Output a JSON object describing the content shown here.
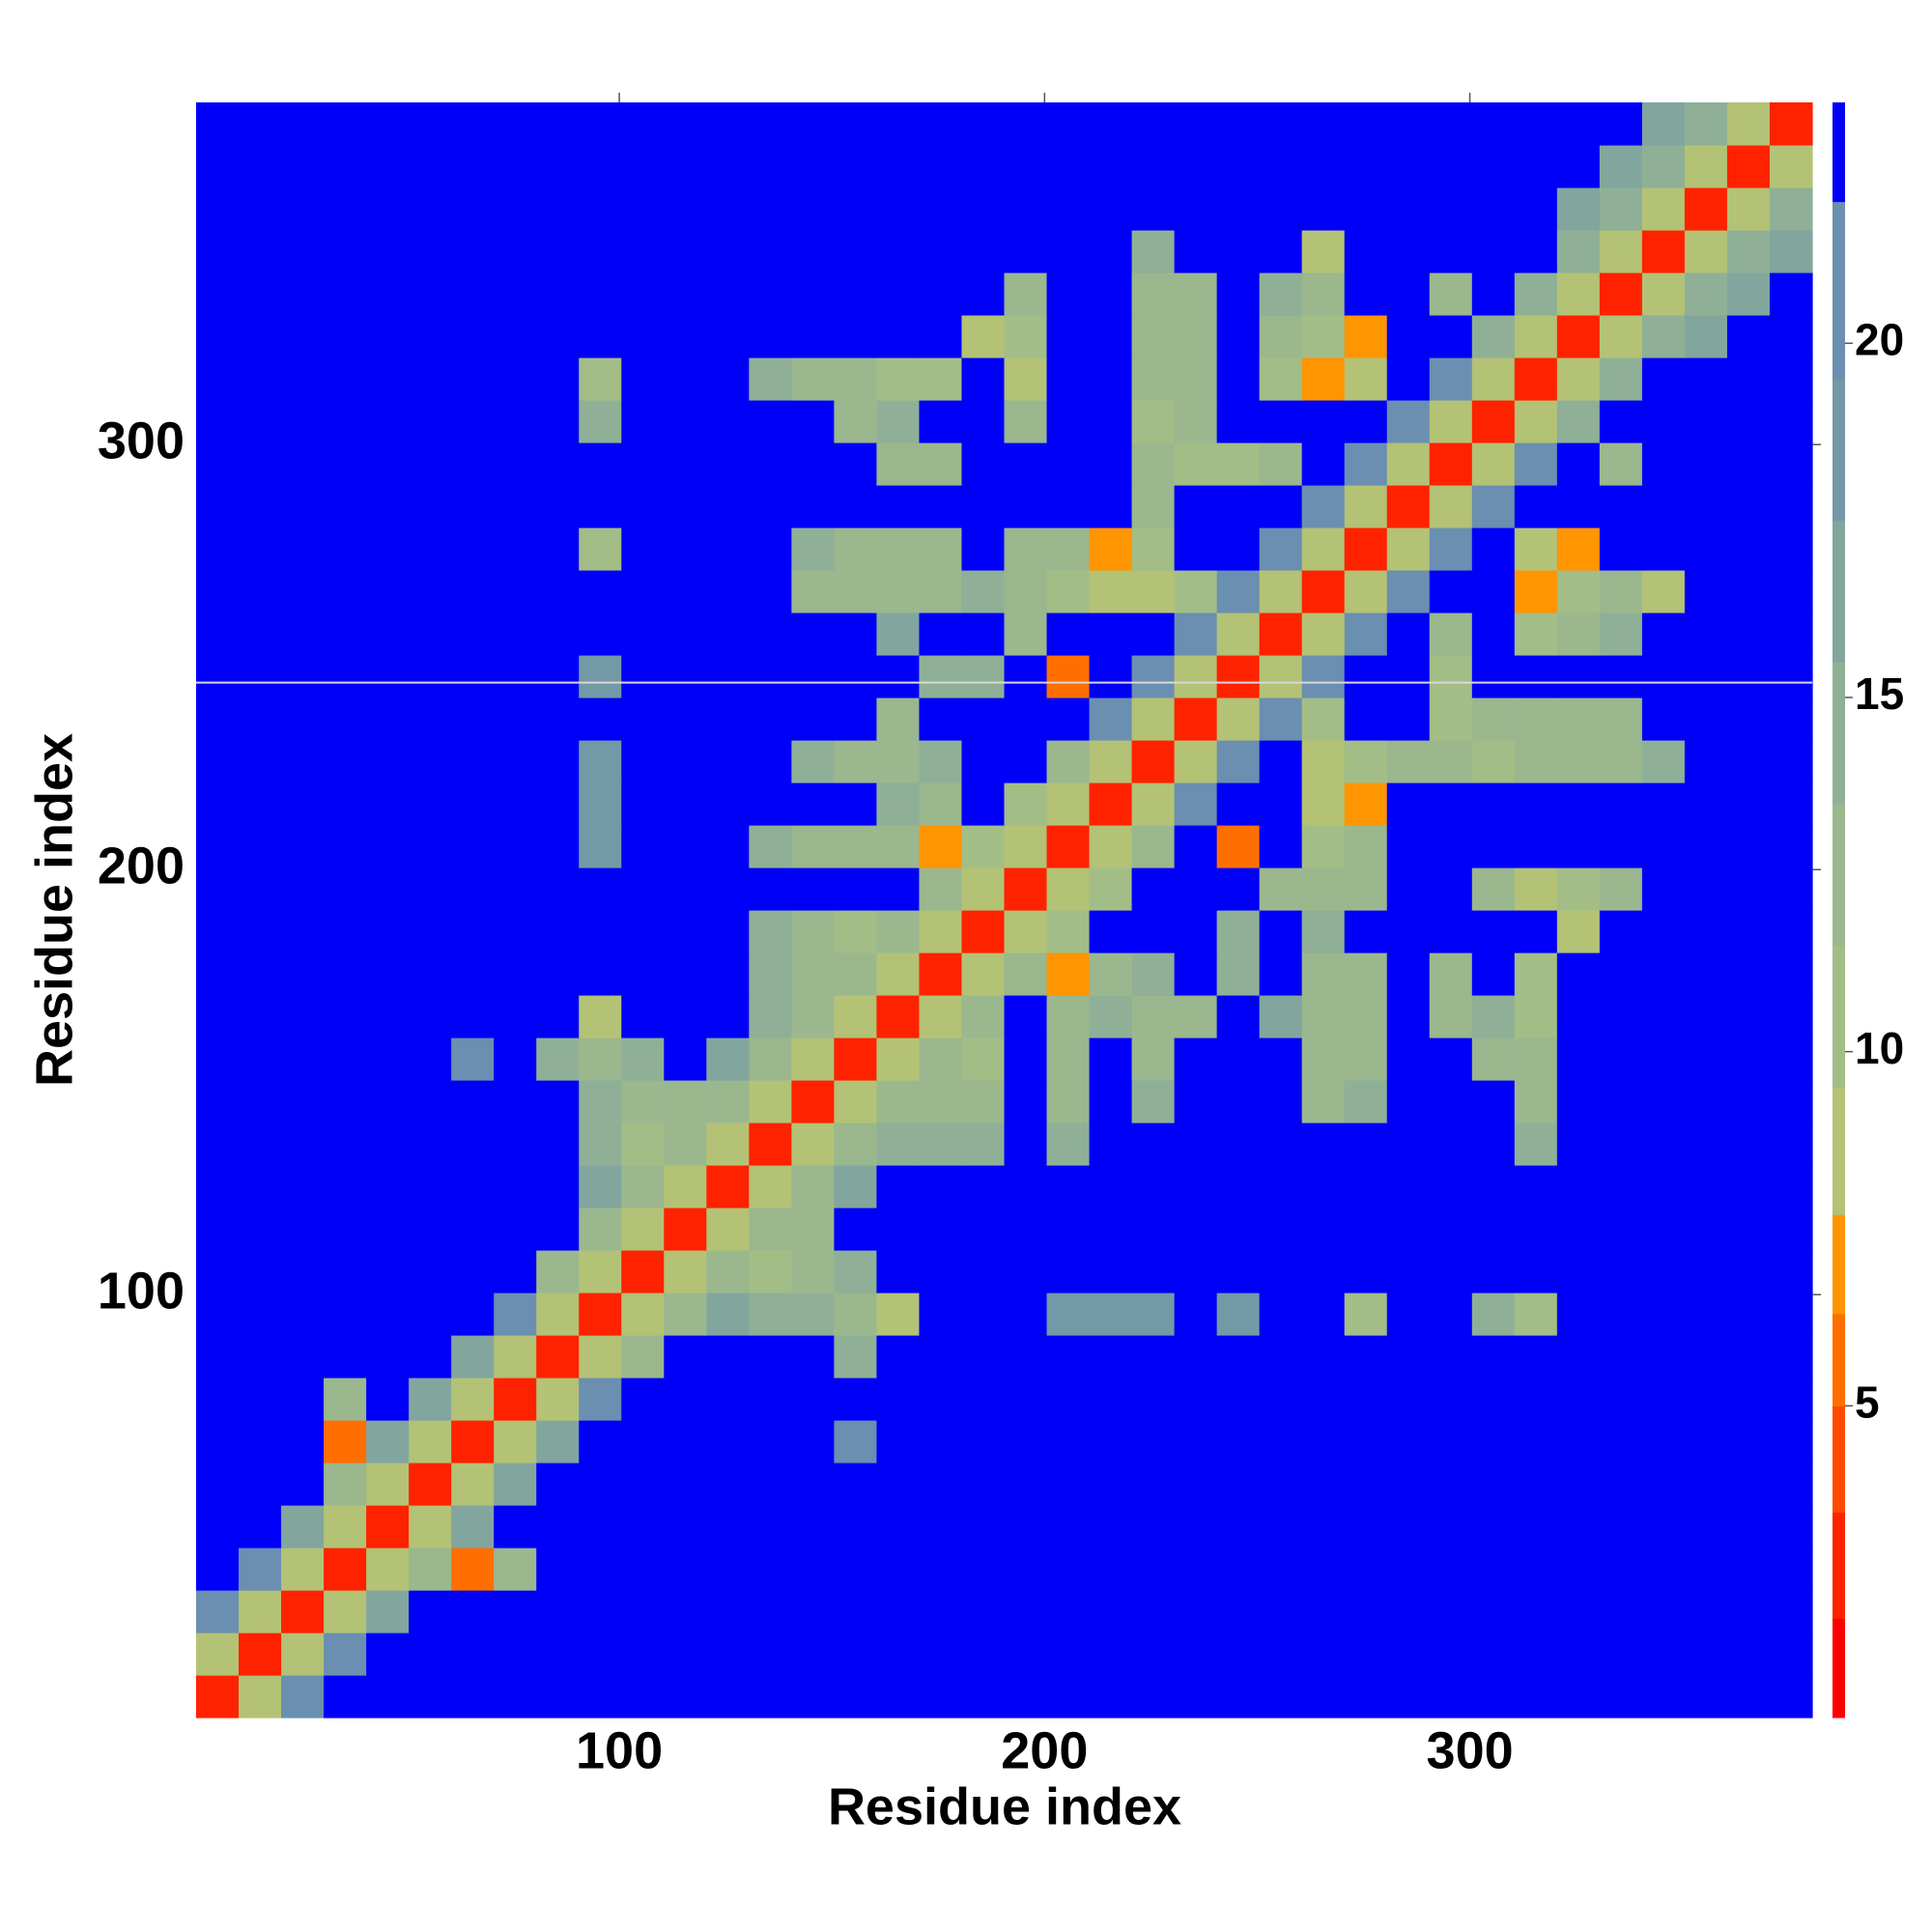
{
  "chart_data": {
    "type": "heatmap",
    "xlabel": "Residue index",
    "ylabel": "Residue index",
    "xlim": [
      0.5,
      380.5
    ],
    "ylim": [
      0.5,
      380.5
    ],
    "xticks": [
      100,
      200,
      300
    ],
    "yticks": [
      100,
      200,
      300
    ],
    "zlim": [
      0.6,
      23.4
    ],
    "zticks": [
      5,
      10,
      15,
      20
    ],
    "levels": [
      0.6,
      2,
      3.5,
      5,
      6.3,
      7.7,
      9.5,
      11.5,
      13.5,
      15.5,
      17.5,
      19.5,
      22,
      23.4
    ],
    "colors": [
      "#ff0000",
      "#ff2200",
      "#ff4a00",
      "#ff6e00",
      "#ff9500",
      "#b3c275",
      "#a3bd86",
      "#9bb78e",
      "#8fb096",
      "#82a69e",
      "#7399a6",
      "#6a8fb0",
      "#0000f8"
    ],
    "hlines": [
      244
    ],
    "hline_color": "#d8d8d8",
    "x": [
      5.5,
      15.5,
      25.5,
      35.5,
      45.5,
      55.5,
      65.5,
      75.5,
      85.5,
      95.5,
      105.5,
      115.5,
      125.5,
      135.5,
      145.5,
      155.5,
      165.5,
      175.5,
      185.5,
      195.5,
      205.5,
      215.5,
      225.5,
      235.5,
      245.5,
      255.5,
      265.5,
      275.5,
      285.5,
      295.5,
      305.5,
      315.5,
      325.5,
      335.5,
      345.5,
      355.5,
      365.5,
      375.5
    ],
    "y": [
      5.5,
      15.5,
      25.5,
      35.5,
      45.5,
      55.5,
      65.5,
      75.5,
      85.5,
      95.5,
      105.5,
      115.5,
      125.5,
      135.5,
      145.5,
      155.5,
      165.5,
      175.5,
      185.5,
      195.5,
      205.5,
      215.5,
      225.5,
      235.5,
      245.5,
      255.5,
      265.5,
      275.5,
      285.5,
      295.5,
      305.5,
      315.5,
      325.5,
      335.5,
      345.5,
      355.5,
      365.5,
      375.5
    ],
    "z": [
      [
        3,
        8,
        20,
        23,
        23,
        23,
        23,
        23,
        23,
        23,
        23,
        23,
        23,
        23,
        23,
        23,
        23,
        23,
        23,
        23,
        23,
        23,
        23,
        23,
        23,
        23,
        23,
        23,
        23,
        23,
        23,
        23,
        23,
        23,
        23,
        23,
        23,
        23
      ],
      [
        8,
        3,
        8,
        20,
        23,
        23,
        23,
        23,
        23,
        23,
        23,
        23,
        23,
        23,
        23,
        23,
        23,
        23,
        23,
        23,
        23,
        23,
        23,
        23,
        23,
        23,
        23,
        23,
        23,
        23,
        23,
        23,
        23,
        23,
        23,
        23,
        23,
        23
      ],
      [
        20,
        8,
        3,
        8,
        16,
        23,
        23,
        23,
        23,
        23,
        23,
        23,
        23,
        23,
        23,
        23,
        23,
        23,
        23,
        23,
        23,
        23,
        23,
        23,
        23,
        23,
        23,
        23,
        23,
        23,
        23,
        23,
        23,
        23,
        23,
        23,
        23,
        23
      ],
      [
        23,
        20,
        8,
        3,
        8,
        12,
        6,
        12,
        23,
        23,
        23,
        23,
        23,
        23,
        23,
        23,
        23,
        23,
        23,
        23,
        23,
        23,
        23,
        23,
        23,
        23,
        23,
        23,
        23,
        23,
        23,
        23,
        23,
        23,
        23,
        23,
        23,
        23
      ],
      [
        23,
        23,
        16,
        8,
        3,
        8,
        16,
        23,
        23,
        23,
        23,
        23,
        23,
        23,
        23,
        23,
        23,
        23,
        23,
        23,
        23,
        23,
        23,
        23,
        23,
        23,
        23,
        23,
        23,
        23,
        23,
        23,
        23,
        23,
        23,
        23,
        23,
        23
      ],
      [
        23,
        23,
        23,
        12,
        8,
        3,
        8,
        16,
        23,
        23,
        23,
        23,
        23,
        23,
        23,
        23,
        23,
        23,
        23,
        23,
        23,
        23,
        23,
        23,
        23,
        23,
        23,
        23,
        23,
        23,
        23,
        23,
        23,
        23,
        23,
        23,
        23,
        23
      ],
      [
        23,
        23,
        23,
        6,
        16,
        8,
        3,
        8,
        16,
        23,
        23,
        23,
        23,
        23,
        23,
        20,
        23,
        23,
        23,
        23,
        23,
        23,
        23,
        23,
        23,
        23,
        23,
        23,
        23,
        23,
        23,
        23,
        23,
        23,
        23,
        23,
        23,
        23
      ],
      [
        23,
        23,
        23,
        12,
        23,
        16,
        8,
        3,
        8,
        20,
        23,
        23,
        23,
        23,
        23,
        23,
        23,
        23,
        23,
        23,
        23,
        23,
        23,
        23,
        23,
        23,
        23,
        23,
        23,
        23,
        23,
        23,
        23,
        23,
        23,
        23,
        23,
        23
      ],
      [
        23,
        23,
        23,
        23,
        23,
        23,
        16,
        8,
        3,
        8,
        13,
        23,
        23,
        23,
        23,
        14,
        23,
        23,
        23,
        23,
        23,
        23,
        23,
        23,
        23,
        23,
        23,
        23,
        23,
        23,
        23,
        23,
        23,
        23,
        23,
        23,
        23,
        23
      ],
      [
        23,
        23,
        23,
        23,
        23,
        23,
        23,
        20,
        8,
        3,
        8,
        13,
        16,
        14,
        14,
        12,
        8,
        23,
        23,
        23,
        18,
        18,
        18,
        23,
        19,
        23,
        23,
        11,
        23,
        23,
        14,
        10,
        23,
        23,
        23,
        23,
        23,
        23
      ],
      [
        23,
        23,
        23,
        23,
        23,
        23,
        23,
        23,
        13,
        8,
        3,
        8,
        13,
        11,
        12,
        14,
        23,
        23,
        23,
        23,
        23,
        23,
        23,
        23,
        23,
        23,
        23,
        23,
        23,
        23,
        23,
        23,
        23,
        23,
        23,
        23,
        23,
        23
      ],
      [
        23,
        23,
        23,
        23,
        23,
        23,
        23,
        23,
        23,
        13,
        8,
        3,
        8,
        13,
        13,
        23,
        23,
        23,
        23,
        23,
        23,
        23,
        23,
        23,
        23,
        23,
        23,
        23,
        23,
        23,
        23,
        23,
        23,
        23,
        23,
        23,
        23,
        23
      ],
      [
        23,
        23,
        23,
        23,
        23,
        23,
        23,
        23,
        23,
        16,
        13,
        8,
        3,
        8,
        13,
        16,
        23,
        23,
        23,
        23,
        23,
        23,
        23,
        23,
        23,
        23,
        23,
        23,
        23,
        23,
        23,
        23,
        23,
        23,
        23,
        23,
        23,
        23
      ],
      [
        23,
        23,
        23,
        23,
        23,
        23,
        23,
        23,
        23,
        14,
        11,
        13,
        8,
        3,
        8,
        13,
        14,
        14,
        14,
        23,
        15,
        23,
        23,
        23,
        23,
        23,
        23,
        23,
        23,
        23,
        23,
        14,
        23,
        23,
        23,
        23,
        23,
        23
      ],
      [
        23,
        23,
        23,
        23,
        23,
        23,
        23,
        23,
        23,
        14,
        12,
        13,
        13,
        8,
        3,
        8,
        13,
        12,
        12,
        23,
        13,
        23,
        14,
        23,
        23,
        23,
        13,
        14,
        23,
        23,
        23,
        12,
        23,
        23,
        23,
        23,
        23,
        23
      ],
      [
        23,
        23,
        23,
        23,
        23,
        23,
        20,
        23,
        14,
        12,
        14,
        23,
        16,
        13,
        8,
        3,
        8,
        13,
        11,
        23,
        12,
        23,
        12,
        23,
        23,
        23,
        13,
        12,
        23,
        23,
        12,
        12,
        23,
        23,
        23,
        23,
        23,
        23
      ],
      [
        23,
        23,
        23,
        23,
        23,
        23,
        23,
        23,
        23,
        8,
        23,
        23,
        23,
        14,
        13,
        8,
        3,
        8,
        13,
        23,
        13,
        14,
        12,
        13,
        23,
        16,
        13,
        12,
        23,
        12,
        14,
        11,
        23,
        23,
        23,
        23,
        23,
        23
      ],
      [
        23,
        23,
        23,
        23,
        23,
        23,
        23,
        23,
        23,
        23,
        23,
        23,
        23,
        14,
        12,
        13,
        8,
        3,
        8,
        13,
        7,
        13,
        14,
        23,
        15,
        23,
        13,
        13,
        23,
        13,
        23,
        10,
        23,
        23,
        23,
        23,
        23,
        23
      ],
      [
        23,
        23,
        23,
        23,
        23,
        23,
        23,
        23,
        23,
        23,
        23,
        23,
        23,
        14,
        12,
        11,
        13,
        8,
        3,
        8,
        10,
        23,
        23,
        23,
        14,
        23,
        14,
        23,
        23,
        23,
        23,
        23,
        8,
        23,
        23,
        23,
        23,
        23
      ],
      [
        23,
        23,
        23,
        23,
        23,
        23,
        23,
        23,
        23,
        23,
        23,
        23,
        23,
        23,
        23,
        23,
        23,
        13,
        8,
        3,
        8,
        10,
        23,
        23,
        23,
        12,
        12,
        13,
        23,
        23,
        13,
        8,
        10,
        12,
        23,
        23,
        23,
        23
      ],
      [
        23,
        23,
        23,
        23,
        23,
        23,
        23,
        23,
        23,
        18,
        23,
        23,
        23,
        15,
        13,
        12,
        13,
        7,
        10,
        8,
        3,
        8,
        12,
        23,
        6,
        23,
        10,
        12,
        23,
        23,
        23,
        23,
        23,
        23,
        23,
        23,
        23,
        23
      ],
      [
        23,
        23,
        23,
        23,
        23,
        23,
        23,
        23,
        23,
        18,
        23,
        23,
        23,
        23,
        23,
        23,
        14,
        13,
        23,
        10,
        8,
        3,
        8,
        20,
        23,
        23,
        9,
        7,
        23,
        23,
        23,
        23,
        23,
        23,
        23,
        23,
        23,
        23
      ],
      [
        23,
        23,
        23,
        23,
        23,
        23,
        23,
        23,
        23,
        18,
        23,
        23,
        23,
        23,
        14,
        12,
        12,
        14,
        23,
        23,
        12,
        8,
        3,
        8,
        20,
        23,
        8,
        10,
        12,
        12,
        11,
        13,
        13,
        13,
        14,
        23,
        23,
        23
      ],
      [
        23,
        23,
        23,
        23,
        23,
        23,
        23,
        23,
        23,
        23,
        23,
        23,
        23,
        23,
        23,
        23,
        13,
        23,
        23,
        23,
        23,
        20,
        8,
        3,
        8,
        20,
        10,
        23,
        23,
        11,
        12,
        13,
        13,
        13,
        23,
        23,
        23,
        23
      ],
      [
        23,
        23,
        23,
        23,
        23,
        23,
        23,
        23,
        23,
        19,
        23,
        23,
        23,
        23,
        23,
        23,
        23,
        15,
        14,
        23,
        6,
        23,
        20,
        8,
        3,
        8,
        20,
        23,
        23,
        10,
        23,
        23,
        23,
        23,
        23,
        23,
        23,
        23
      ],
      [
        23,
        23,
        23,
        23,
        23,
        23,
        23,
        23,
        23,
        23,
        23,
        23,
        23,
        23,
        23,
        23,
        16,
        23,
        23,
        12,
        23,
        23,
        23,
        20,
        8,
        3,
        8,
        20,
        23,
        13,
        23,
        10,
        12,
        14,
        23,
        23,
        23,
        23
      ],
      [
        23,
        23,
        23,
        23,
        23,
        23,
        23,
        23,
        23,
        23,
        23,
        23,
        23,
        23,
        13,
        13,
        13,
        13,
        14,
        12,
        10,
        9,
        8,
        10,
        20,
        8,
        3,
        8,
        20,
        23,
        23,
        7,
        10,
        12,
        8,
        23,
        23,
        23
      ],
      [
        23,
        23,
        23,
        23,
        23,
        23,
        23,
        23,
        23,
        11,
        23,
        23,
        23,
        23,
        14,
        12,
        12,
        13,
        23,
        13,
        12,
        7,
        10,
        23,
        23,
        20,
        8,
        3,
        8,
        20,
        23,
        8,
        7,
        23,
        23,
        23,
        23,
        23
      ],
      [
        23,
        23,
        23,
        23,
        23,
        23,
        23,
        23,
        23,
        23,
        23,
        23,
        23,
        23,
        23,
        23,
        23,
        23,
        23,
        23,
        23,
        23,
        12,
        23,
        23,
        23,
        20,
        8,
        3,
        8,
        20,
        23,
        23,
        23,
        23,
        23,
        23,
        23
      ],
      [
        23,
        23,
        23,
        23,
        23,
        23,
        23,
        23,
        23,
        23,
        23,
        23,
        23,
        23,
        23,
        23,
        12,
        13,
        23,
        23,
        23,
        23,
        12,
        11,
        10,
        13,
        23,
        20,
        8,
        3,
        8,
        20,
        23,
        12,
        23,
        23,
        23,
        23
      ],
      [
        23,
        23,
        23,
        23,
        23,
        23,
        23,
        23,
        23,
        14,
        23,
        23,
        23,
        23,
        23,
        12,
        14,
        23,
        23,
        13,
        23,
        23,
        11,
        12,
        23,
        23,
        23,
        23,
        20,
        8,
        3,
        8,
        14,
        23,
        23,
        23,
        23,
        23
      ],
      [
        23,
        23,
        23,
        23,
        23,
        23,
        23,
        23,
        23,
        10,
        23,
        23,
        23,
        14,
        12,
        12,
        11,
        10,
        23,
        8,
        23,
        23,
        13,
        13,
        23,
        10,
        7,
        8,
        23,
        20,
        8,
        3,
        8,
        14,
        23,
        23,
        23,
        23
      ],
      [
        23,
        23,
        23,
        23,
        23,
        23,
        23,
        23,
        23,
        23,
        23,
        23,
        23,
        23,
        23,
        23,
        23,
        23,
        8,
        10,
        23,
        23,
        13,
        13,
        23,
        12,
        10,
        7,
        23,
        23,
        14,
        8,
        3,
        8,
        14,
        17,
        23,
        23
      ],
      [
        23,
        23,
        23,
        23,
        23,
        23,
        23,
        23,
        23,
        23,
        23,
        23,
        23,
        23,
        23,
        23,
        23,
        23,
        23,
        12,
        23,
        23,
        13,
        13,
        23,
        14,
        12,
        23,
        23,
        12,
        23,
        14,
        8,
        3,
        8,
        14,
        16,
        23
      ],
      [
        23,
        23,
        23,
        23,
        23,
        23,
        23,
        23,
        23,
        23,
        23,
        23,
        23,
        23,
        23,
        23,
        23,
        23,
        23,
        23,
        23,
        23,
        14,
        23,
        23,
        23,
        8,
        23,
        23,
        23,
        23,
        23,
        14,
        8,
        3,
        8,
        14,
        16
      ],
      [
        23,
        23,
        23,
        23,
        23,
        23,
        23,
        23,
        23,
        23,
        23,
        23,
        23,
        23,
        23,
        23,
        23,
        23,
        23,
        23,
        23,
        23,
        23,
        23,
        23,
        23,
        23,
        23,
        23,
        23,
        23,
        23,
        17,
        14,
        8,
        3,
        8,
        14
      ],
      [
        23,
        23,
        23,
        23,
        23,
        23,
        23,
        23,
        23,
        23,
        23,
        23,
        23,
        23,
        23,
        23,
        23,
        23,
        23,
        23,
        23,
        23,
        23,
        23,
        23,
        23,
        23,
        23,
        23,
        23,
        23,
        23,
        23,
        16,
        14,
        8,
        3,
        8
      ],
      [
        23,
        23,
        23,
        23,
        23,
        23,
        23,
        23,
        23,
        23,
        23,
        23,
        23,
        23,
        23,
        23,
        23,
        23,
        23,
        23,
        23,
        23,
        23,
        23,
        23,
        23,
        23,
        23,
        23,
        23,
        23,
        23,
        23,
        23,
        16,
        14,
        8,
        3
      ]
    ]
  }
}
